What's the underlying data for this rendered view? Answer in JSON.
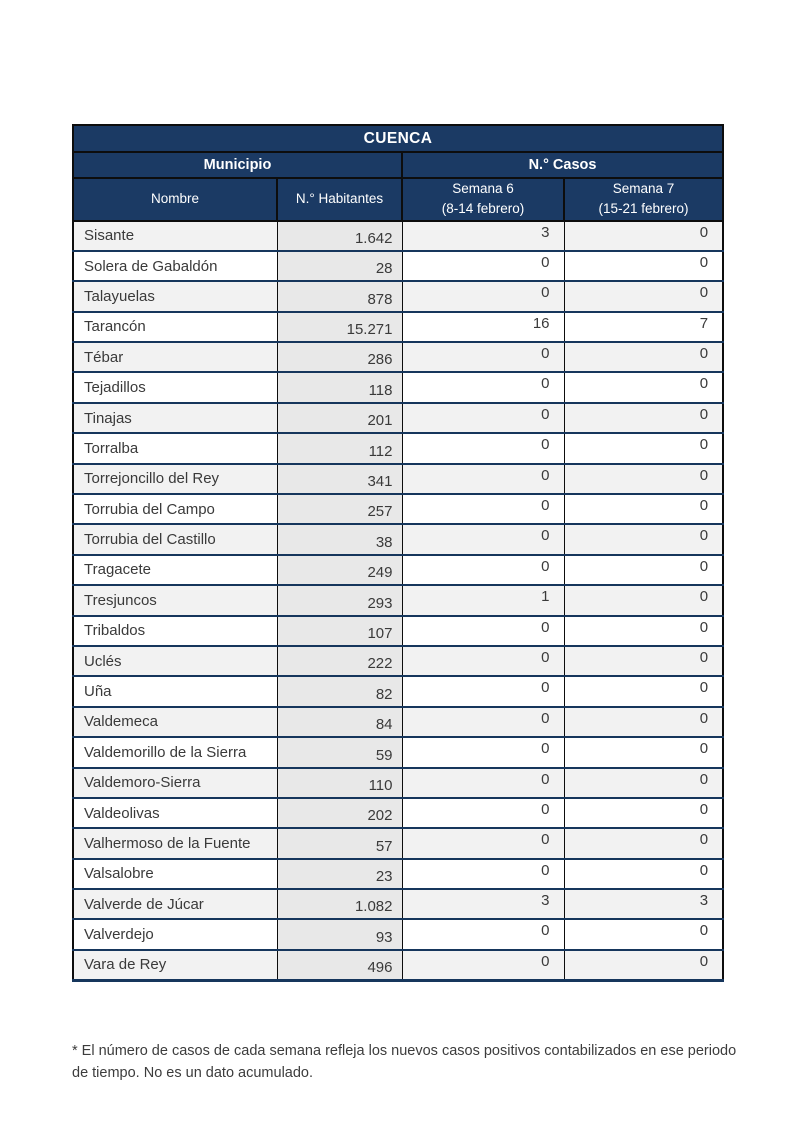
{
  "table": {
    "title": "CUENCA",
    "group_headers": {
      "municipio": "Municipio",
      "casos": "N.° Casos"
    },
    "column_headers": {
      "nombre": "Nombre",
      "habitantes": "N.° Habitantes",
      "semana6_line1": "Semana 6",
      "semana6_line2": "(8-14 febrero)",
      "semana7_line1": "Semana 7",
      "semana7_line2": "(15-21 febrero)"
    },
    "rows": [
      {
        "nombre": "Sisante",
        "habitantes": "1.642",
        "semana6": "3",
        "semana7": "0"
      },
      {
        "nombre": "Solera de Gabaldón",
        "habitantes": "28",
        "semana6": "0",
        "semana7": "0"
      },
      {
        "nombre": "Talayuelas",
        "habitantes": "878",
        "semana6": "0",
        "semana7": "0"
      },
      {
        "nombre": "Tarancón",
        "habitantes": "15.271",
        "semana6": "16",
        "semana7": "7"
      },
      {
        "nombre": "Tébar",
        "habitantes": "286",
        "semana6": "0",
        "semana7": "0"
      },
      {
        "nombre": "Tejadillos",
        "habitantes": "118",
        "semana6": "0",
        "semana7": "0"
      },
      {
        "nombre": "Tinajas",
        "habitantes": "201",
        "semana6": "0",
        "semana7": "0"
      },
      {
        "nombre": "Torralba",
        "habitantes": "112",
        "semana6": "0",
        "semana7": "0"
      },
      {
        "nombre": "Torrejoncillo del Rey",
        "habitantes": "341",
        "semana6": "0",
        "semana7": "0"
      },
      {
        "nombre": "Torrubia del Campo",
        "habitantes": "257",
        "semana6": "0",
        "semana7": "0"
      },
      {
        "nombre": "Torrubia del Castillo",
        "habitantes": "38",
        "semana6": "0",
        "semana7": "0"
      },
      {
        "nombre": "Tragacete",
        "habitantes": "249",
        "semana6": "0",
        "semana7": "0"
      },
      {
        "nombre": "Tresjuncos",
        "habitantes": "293",
        "semana6": "1",
        "semana7": "0"
      },
      {
        "nombre": "Tribaldos",
        "habitantes": "107",
        "semana6": "0",
        "semana7": "0"
      },
      {
        "nombre": "Uclés",
        "habitantes": "222",
        "semana6": "0",
        "semana7": "0"
      },
      {
        "nombre": "Uña",
        "habitantes": "82",
        "semana6": "0",
        "semana7": "0"
      },
      {
        "nombre": "Valdemeca",
        "habitantes": "84",
        "semana6": "0",
        "semana7": "0"
      },
      {
        "nombre": "Valdemorillo de la Sierra",
        "habitantes": "59",
        "semana6": "0",
        "semana7": "0"
      },
      {
        "nombre": "Valdemoro-Sierra",
        "habitantes": "110",
        "semana6": "0",
        "semana7": "0"
      },
      {
        "nombre": "Valdeolivas",
        "habitantes": "202",
        "semana6": "0",
        "semana7": "0"
      },
      {
        "nombre": "Valhermoso de la Fuente",
        "habitantes": "57",
        "semana6": "0",
        "semana7": "0"
      },
      {
        "nombre": "Valsalobre",
        "habitantes": "23",
        "semana6": "0",
        "semana7": "0"
      },
      {
        "nombre": "Valverde de Júcar",
        "habitantes": "1.082",
        "semana6": "3",
        "semana7": "3"
      },
      {
        "nombre": "Valverdejo",
        "habitantes": "93",
        "semana6": "0",
        "semana7": "0"
      },
      {
        "nombre": "Vara de Rey",
        "habitantes": "496",
        "semana6": "0",
        "semana7": "0"
      }
    ]
  },
  "footnote": "* El número de casos de cada semana refleja los nuevos casos positivos contabilizados en ese periodo de tiempo. No es un dato acumulado.",
  "colors": {
    "header_navy": "#1b3a64",
    "grid_black": "#0d0d0d",
    "row_stripe": "#f2f2f2",
    "habitantes_bg": "#e8e8e8",
    "body_text": "#3a3a3a"
  }
}
